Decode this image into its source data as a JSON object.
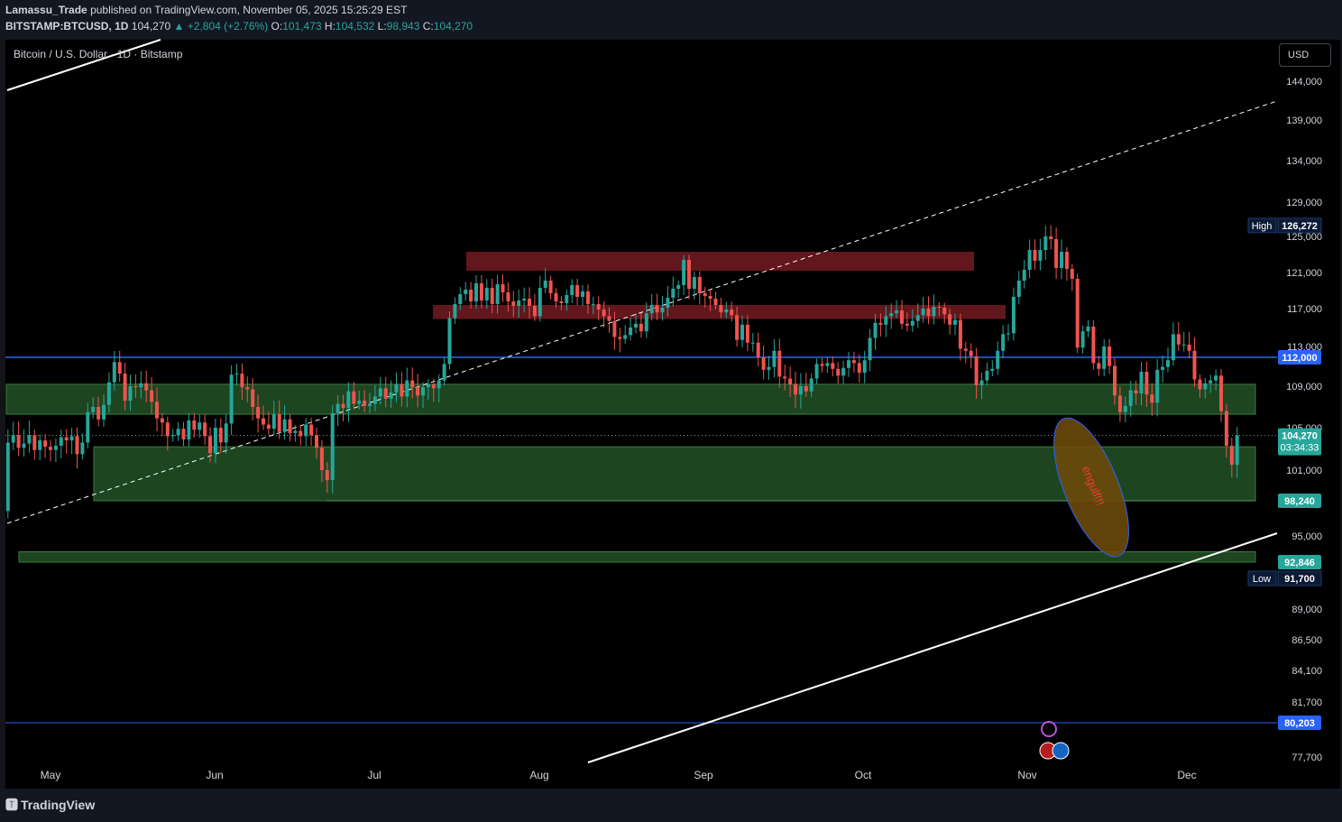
{
  "header": {
    "publisher": "Lamassu_Trade",
    "published_text": "published on TradingView.com, November 05, 2025 15:25:29 EST",
    "symbol": "BITSTAMP:BTCUSD, 1D",
    "last": "104,270",
    "change": "+2,804 (+2.76%)",
    "o_label": "O:",
    "o": "101,473",
    "h_label": "H:",
    "h": "104,532",
    "l_label": "L:",
    "l": "98,943",
    "c_label": "C:",
    "c": "104,270"
  },
  "legend": "Bitcoin / U.S. Dollar · 1D · Bitstamp",
  "currency_button": "USD",
  "footer_brand": "TradingView",
  "colors": {
    "up": "#26a69a",
    "down": "#ef5350",
    "zone_green": "#1f4a22",
    "zone_red": "#6b1a1f",
    "hline": "#2962ff"
  },
  "chart_data": {
    "type": "candlestick",
    "x_labels": [
      "May",
      "Jun",
      "Jul",
      "Aug",
      "Sep",
      "Oct",
      "Nov",
      "Dec"
    ],
    "y_ticks": [
      "144,000",
      "139,000",
      "134,000",
      "129,000",
      "125,000",
      "121,000",
      "117,000",
      "113,000",
      "109,000",
      "105,000",
      "101,000",
      "95,000",
      "89,000",
      "86,500",
      "84,100",
      "81,700",
      "77,700"
    ],
    "y_tick_values": [
      144000,
      139000,
      134000,
      129000,
      125000,
      121000,
      117000,
      113000,
      109000,
      105000,
      101000,
      95000,
      89000,
      86500,
      84100,
      81700,
      77700
    ],
    "price_labels": [
      {
        "text": "112,000",
        "value": 112000,
        "color": "#2962ff"
      },
      {
        "text": "104,270",
        "sub": "03:34:33",
        "value": 104270,
        "color": "#26a69a"
      },
      {
        "text": "98,240",
        "value": 98240,
        "color": "#26a69a"
      },
      {
        "text": "92,846",
        "value": 92846,
        "color": "#26a69a"
      },
      {
        "text": "80,203",
        "value": 80203,
        "color": "#2962ff"
      }
    ],
    "high_label": {
      "tag": "High",
      "text": "126,272",
      "value": 126272
    },
    "low_label": {
      "tag": "Low",
      "text": "91,700",
      "value": 91700
    },
    "horizontal_lines": [
      112000,
      80203
    ],
    "last_price": 104270,
    "zones_green": [
      [
        106300,
        109200
      ],
      [
        98240,
        103200
      ],
      [
        92846,
        93700
      ]
    ],
    "zones_red": [
      [
        121200,
        123300
      ],
      [
        115900,
        117400
      ]
    ],
    "annotation": "engulf!!!",
    "closes": [
      93800,
      94500,
      95200,
      94300,
      96800,
      95900,
      96500,
      94200,
      97100,
      96000,
      97600,
      97900,
      98000,
      96900,
      97200,
      98400,
      96000,
      94000,
      94700,
      97300,
      103600,
      104300,
      103100,
      103500,
      104300,
      102900,
      103800,
      103200,
      102900,
      103300,
      104100,
      103800,
      104200,
      102500,
      103600,
      106500,
      107000,
      105800,
      107200,
      109400,
      111500,
      110300,
      107600,
      109000,
      108900,
      109300,
      108600,
      107500,
      105900,
      105500,
      104200,
      104300,
      104900,
      103900,
      105700,
      104800,
      105500,
      104200,
      102600,
      105000,
      103600,
      105400,
      110200,
      110300,
      108900,
      108700,
      107000,
      105900,
      105300,
      104900,
      106300,
      104600,
      105800,
      104500,
      104700,
      104200,
      105300,
      104300,
      103100,
      101000,
      100100,
      106400,
      107300,
      106900,
      108500,
      107300,
      107600,
      107100,
      107300,
      108000,
      108800,
      107800,
      108400,
      109200,
      108000,
      109600,
      108900,
      108100,
      108900,
      109200,
      108800,
      109600,
      111300,
      116000,
      117500,
      118600,
      119100,
      117800,
      119800,
      117900,
      119300,
      117500,
      119700,
      118800,
      117800,
      117300,
      117900,
      118100,
      117300,
      116200,
      119300,
      120100,
      118700,
      117800,
      117600,
      118500,
      119600,
      118300,
      118900,
      117500,
      117500,
      116900,
      116200,
      115700,
      114000,
      113800,
      114200,
      115000,
      115400,
      114600,
      116500,
      117400,
      116600,
      117100,
      118200,
      119200,
      119600,
      122400,
      119200,
      120500,
      118700,
      118400,
      118100,
      117400,
      116600,
      116900,
      116300,
      113700,
      115300,
      113400,
      113400,
      112000,
      110700,
      111000,
      112600,
      110000,
      109800,
      109200,
      108200,
      109000,
      108500,
      109800,
      111300,
      111100,
      111400,
      110800,
      110100,
      110900,
      111700,
      111400,
      110400,
      111700,
      113900,
      115500,
      115300,
      116200,
      116500,
      116800,
      115400,
      115200,
      115700,
      116300,
      117000,
      116200,
      117200,
      117100,
      116400,
      115300,
      115800,
      112800,
      112600,
      112100,
      109100,
      109600,
      110600,
      110800,
      112600,
      114300,
      114400,
      118300,
      120100,
      121300,
      123500,
      122300,
      123500,
      125000,
      124700,
      121500,
      123300,
      121400,
      120300,
      112900,
      114600,
      115100,
      111400,
      110800,
      113000,
      111100,
      108100,
      106500,
      107100,
      108600,
      108300,
      110500,
      108200,
      107400,
      110700,
      111000,
      111700,
      114300,
      113200,
      113200,
      112600,
      109700,
      108700,
      109300,
      109600,
      110100,
      106600,
      103300,
      101500,
      104270
    ]
  }
}
